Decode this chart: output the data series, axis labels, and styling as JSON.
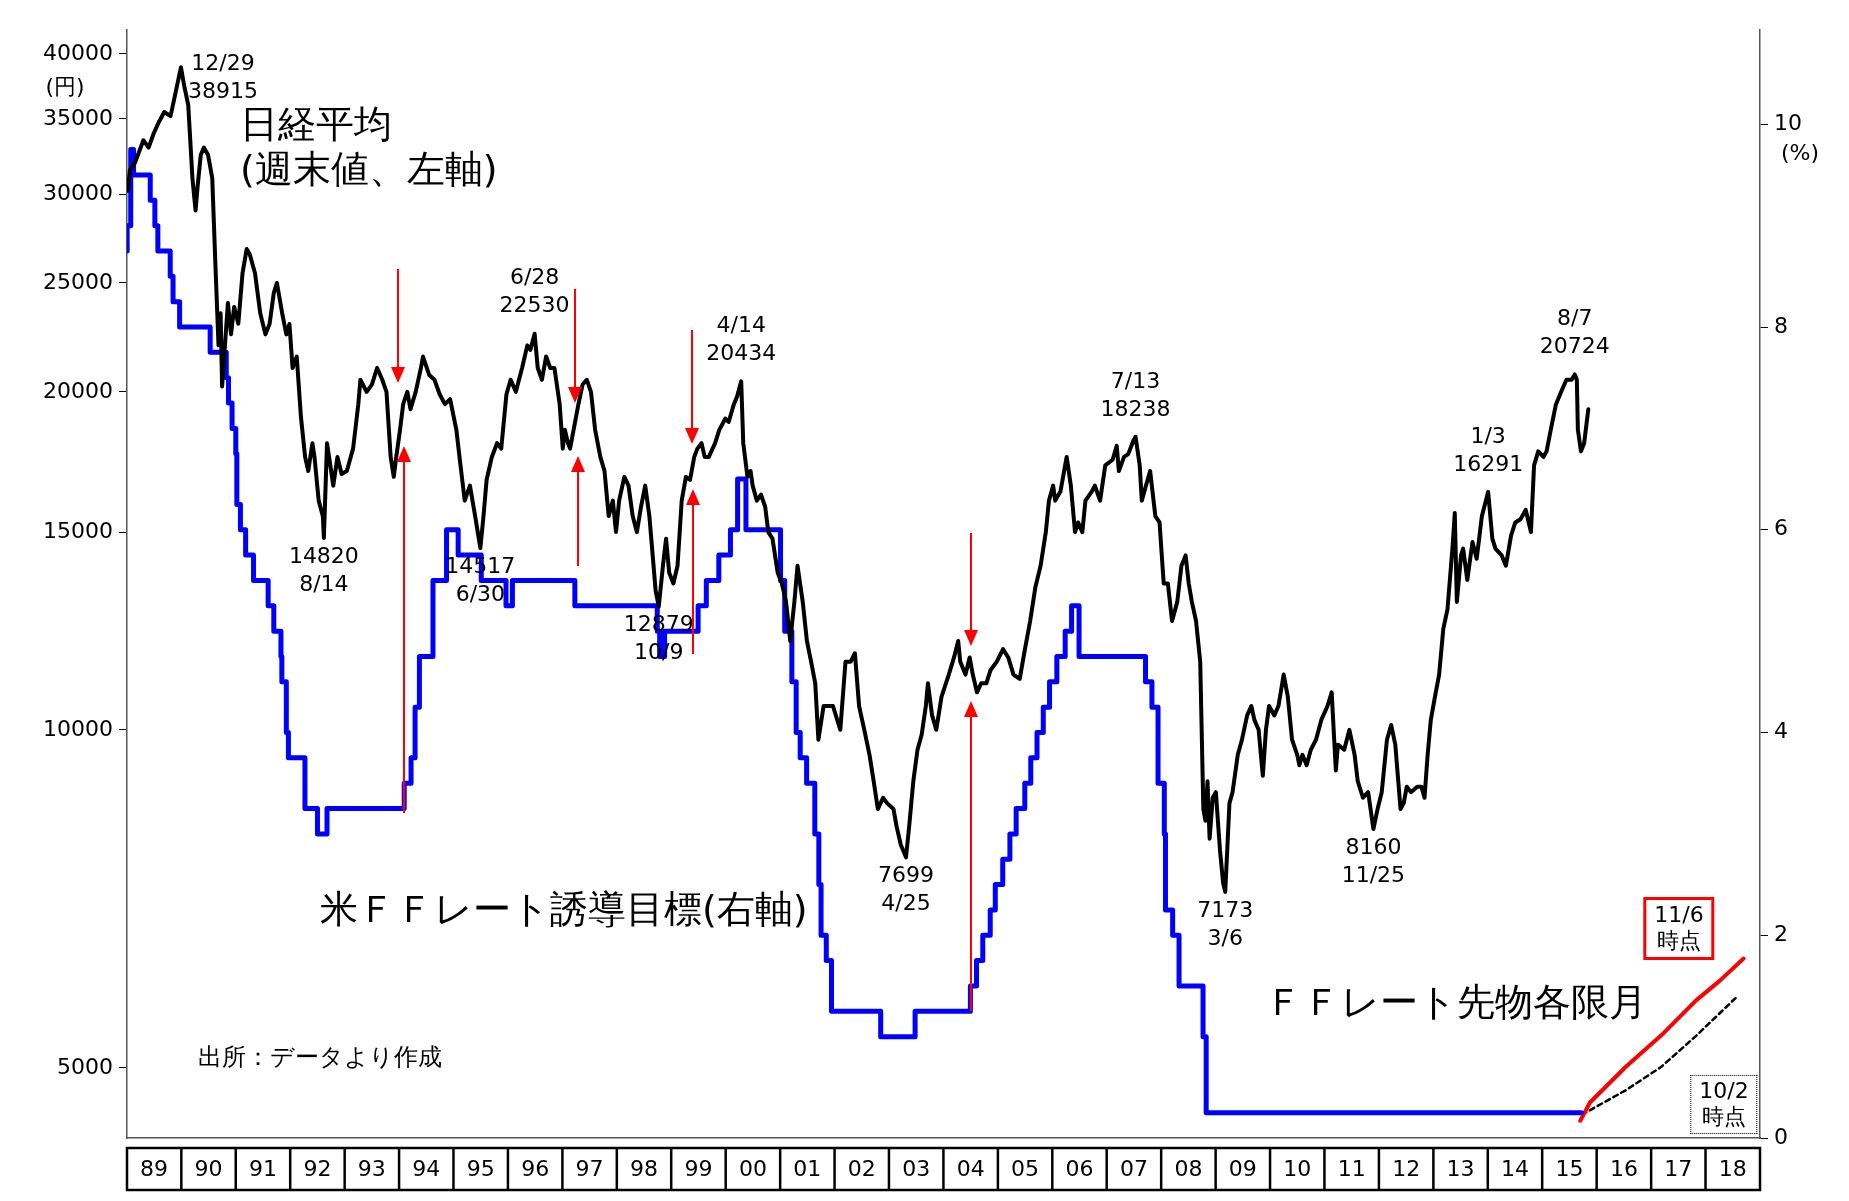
{
  "chart_data": {
    "type": "line",
    "ylabel": "(円)",
    "y2label": "(%)",
    "log": "y",
    "marker": "none",
    "xlim": [
      "1989-01-01",
      "2019-01-01"
    ],
    "xticks": [
      {
        "value": "1989-07-02",
        "label": "89"
      },
      {
        "value": "1990-07-02",
        "label": "90"
      },
      {
        "value": "1991-07-02",
        "label": "91"
      },
      {
        "value": "1992-07-02",
        "label": "92"
      },
      {
        "value": "1993-07-02",
        "label": "93"
      },
      {
        "value": "1994-07-02",
        "label": "94"
      },
      {
        "value": "1995-07-02",
        "label": "95"
      },
      {
        "value": "1996-07-02",
        "label": "96"
      },
      {
        "value": "1997-07-02",
        "label": "97"
      },
      {
        "value": "1998-07-02",
        "label": "98"
      },
      {
        "value": "1999-07-02",
        "label": "99"
      },
      {
        "value": "2000-07-02",
        "label": "00"
      },
      {
        "value": "2001-07-02",
        "label": "01"
      },
      {
        "value": "2002-07-02",
        "label": "02"
      },
      {
        "value": "2003-07-02",
        "label": "03"
      },
      {
        "value": "2004-07-02",
        "label": "04"
      },
      {
        "value": "2005-07-02",
        "label": "05"
      },
      {
        "value": "2006-07-02",
        "label": "06"
      },
      {
        "value": "2007-07-02",
        "label": "07"
      },
      {
        "value": "2008-07-02",
        "label": "08"
      },
      {
        "value": "2009-07-02",
        "label": "09"
      },
      {
        "value": "2010-07-02",
        "label": "10"
      },
      {
        "value": "2011-07-02",
        "label": "11"
      },
      {
        "value": "2012-07-02",
        "label": "12"
      },
      {
        "value": "2013-07-02",
        "label": "13"
      },
      {
        "value": "2014-07-02",
        "label": "14"
      },
      {
        "value": "2015-07-02",
        "label": "15"
      },
      {
        "value": "2016-07-02",
        "label": "16"
      },
      {
        "value": "2017-07-02",
        "label": "17"
      },
      {
        "value": "2018-07-02",
        "label": "18"
      }
    ],
    "ylim": [
      4330,
      42000
    ],
    "yticks": [
      5000,
      10000,
      15000,
      20000,
      25000,
      30000,
      35000,
      40000
    ],
    "y2lim": [
      0,
      10.93
    ],
    "y2ticks": [
      0,
      2,
      4,
      6,
      8,
      10
    ],
    "series": [
      {
        "name": "日経平均\n(週末値、左軸)",
        "type": "line",
        "color": "#000000",
        "x": [
          "1989-01-06",
          "1989-01-20",
          "1989-02-24",
          "1989-04-21",
          "1989-05-26",
          "1989-06-30",
          "1989-08-04",
          "1989-09-08",
          "1989-10-20",
          "1989-11-24",
          "1989-12-29",
          "1990-01-19",
          "1990-02-16",
          "1990-03-16",
          "1990-04-06",
          "1990-04-20",
          "1990-05-11",
          "1990-06-01",
          "1990-06-29",
          "1990-07-27",
          "1990-08-17",
          "1990-09-07",
          "1990-09-21",
          "1990-10-01",
          "1990-11-09",
          "1990-11-30",
          "1990-12-21",
          "1991-01-18",
          "1991-02-15",
          "1991-03-15",
          "1991-04-05",
          "1991-05-10",
          "1991-06-14",
          "1991-07-19",
          "1991-08-16",
          "1991-09-13",
          "1991-10-04",
          "1991-11-08",
          "1991-12-06",
          "1991-12-27",
          "1992-01-17",
          "1992-02-14",
          "1992-03-13",
          "1992-04-10",
          "1992-05-01",
          "1992-05-29",
          "1992-06-12",
          "1992-07-10",
          "1992-08-07",
          "1992-08-14",
          "1992-09-04",
          "1992-09-18",
          "1992-10-16",
          "1992-11-13",
          "1992-12-11",
          "1993-01-15",
          "1993-02-26",
          "1993-04-02",
          "1993-04-16",
          "1993-05-28",
          "1993-07-02",
          "1993-08-06",
          "1993-09-10",
          "1993-10-08",
          "1993-11-05",
          "1993-11-26",
          "1993-12-10",
          "1994-01-07",
          "1994-01-28",
          "1994-02-25",
          "1994-03-18",
          "1994-04-22",
          "1994-05-27",
          "1994-06-10",
          "1994-07-22",
          "1994-08-26",
          "1994-09-30",
          "1994-11-04",
          "1994-12-09",
          "1995-01-20",
          "1995-02-10",
          "1995-03-17",
          "1995-04-21",
          "1995-05-26",
          "1995-06-30",
          "1995-07-21",
          "1995-08-11",
          "1995-09-15",
          "1995-10-20",
          "1995-11-17",
          "1995-12-22",
          "1996-01-19",
          "1996-02-23",
          "1996-04-05",
          "1996-05-10",
          "1996-05-31",
          "1996-06-28",
          "1996-07-19",
          "1996-08-16",
          "1996-09-13",
          "1996-10-11",
          "1996-11-08",
          "1996-12-13",
          "1997-01-03",
          "1997-01-17",
          "1997-02-07",
          "1997-02-21",
          "1997-04-18",
          "1997-05-16",
          "1997-06-13",
          "1997-07-11",
          "1997-08-08",
          "1997-09-12",
          "1997-10-10",
          "1997-11-07",
          "1997-12-05",
          "1997-12-26",
          "1998-01-16",
          "1998-02-20",
          "1998-03-20",
          "1998-04-17",
          "1998-05-15",
          "1998-06-12",
          "1998-07-10",
          "1998-08-07",
          "1998-09-04",
          "1998-09-18",
          "1998-10-09",
          "1998-11-06",
          "1998-11-27",
          "1998-12-18",
          "1999-01-15",
          "1999-02-12",
          "1999-03-12",
          "1999-04-09",
          "1999-05-07",
          "1999-06-04",
          "1999-06-25",
          "1999-07-23",
          "1999-08-13",
          "1999-09-10",
          "1999-10-22",
          "1999-11-19",
          "1999-12-30",
          "2000-01-21",
          "2000-02-25",
          "2000-03-17",
          "2000-04-14",
          "2000-04-28",
          "2000-05-26",
          "2000-06-16",
          "2000-06-30",
          "2000-07-28",
          "2000-08-25",
          "2000-09-22",
          "2000-10-13",
          "2000-11-10",
          "2000-12-15",
          "2001-01-12",
          "2001-02-09",
          "2001-03-09",
          "2001-04-06",
          "2001-04-27",
          "2001-06-01",
          "2001-06-29",
          "2001-07-27",
          "2001-08-24",
          "2001-09-14",
          "2001-10-19",
          "2001-11-16",
          "2001-12-21",
          "2002-02-08",
          "2002-03-15",
          "2002-04-19",
          "2002-05-17",
          "2002-06-14",
          "2002-07-19",
          "2002-08-23",
          "2002-09-20",
          "2002-10-18",
          "2002-11-22",
          "2002-12-20",
          "2003-01-31",
          "2003-02-21",
          "2003-03-21",
          "2003-04-25",
          "2003-05-16",
          "2003-06-13",
          "2003-07-11",
          "2003-08-08",
          "2003-09-05",
          "2003-09-19",
          "2003-10-17",
          "2003-11-14",
          "2003-12-19",
          "2004-02-06",
          "2004-03-12",
          "2004-04-09",
          "2004-04-23",
          "2004-05-28",
          "2004-06-25",
          "2004-07-16",
          "2004-08-13",
          "2004-09-10",
          "2004-10-15",
          "2004-11-12",
          "2004-12-24",
          "2005-02-04",
          "2005-03-11",
          "2005-04-15",
          "2005-05-27",
          "2005-07-01",
          "2005-08-05",
          "2005-09-09",
          "2005-10-14",
          "2005-11-18",
          "2005-12-09",
          "2006-01-06",
          "2006-01-20",
          "2006-02-24",
          "2006-04-07",
          "2006-05-05",
          "2006-06-02",
          "2006-06-23",
          "2006-07-21",
          "2006-08-11",
          "2006-09-22",
          "2006-10-13",
          "2006-11-17",
          "2006-12-22",
          "2007-02-09",
          "2007-03-09",
          "2007-03-23",
          "2007-04-27",
          "2007-05-25",
          "2007-06-29",
          "2007-07-13",
          "2007-08-10",
          "2007-08-24",
          "2007-09-21",
          "2007-10-19",
          "2007-11-23",
          "2007-12-21",
          "2008-01-18",
          "2008-02-15",
          "2008-03-14",
          "2008-04-18",
          "2008-05-16",
          "2008-06-13",
          "2008-07-04",
          "2008-07-25",
          "2008-08-22",
          "2008-09-19",
          "2008-10-10",
          "2008-10-24",
          "2008-11-07",
          "2008-11-21",
          "2008-12-12",
          "2009-01-02",
          "2009-01-30",
          "2009-02-20",
          "2009-03-06",
          "2009-04-03",
          "2009-04-24",
          "2009-05-29",
          "2009-06-26",
          "2009-07-31",
          "2009-08-28",
          "2009-09-18",
          "2009-10-16",
          "2009-11-13",
          "2009-12-04",
          "2009-12-25",
          "2010-01-29",
          "2010-02-26",
          "2010-04-02",
          "2010-04-30",
          "2010-05-28",
          "2010-07-02",
          "2010-07-16",
          "2010-08-06",
          "2010-09-03",
          "2010-10-01",
          "2010-11-05",
          "2010-12-10",
          "2011-01-21",
          "2011-02-18",
          "2011-03-18",
          "2011-04-01",
          "2011-05-13",
          "2011-06-17",
          "2011-07-22",
          "2011-08-12",
          "2011-09-16",
          "2011-10-21",
          "2011-11-25",
          "2011-12-23",
          "2012-01-20",
          "2012-02-24",
          "2012-03-23",
          "2012-04-20",
          "2012-05-25",
          "2012-06-15",
          "2012-07-06",
          "2012-08-03",
          "2012-09-14",
          "2012-10-12",
          "2012-11-02",
          "2012-11-23",
          "2012-12-14",
          "2013-01-11",
          "2013-02-08",
          "2013-03-08",
          "2013-04-05",
          "2013-05-10",
          "2013-05-24",
          "2013-06-07",
          "2013-07-05",
          "2013-07-19",
          "2013-08-16",
          "2013-09-20",
          "2013-10-18",
          "2013-11-22",
          "2014-01-03",
          "2014-01-31",
          "2014-02-21",
          "2014-04-04",
          "2014-05-02",
          "2014-06-06",
          "2014-07-04",
          "2014-08-08",
          "2014-09-12",
          "2014-10-17",
          "2014-11-07",
          "2014-12-05",
          "2015-01-09",
          "2015-01-30",
          "2015-02-27",
          "2015-04-03",
          "2015-05-08",
          "2015-06-12",
          "2015-07-17",
          "2015-08-07",
          "2015-08-21",
          "2015-08-28",
          "2015-09-18",
          "2015-10-09",
          "2015-11-06"
        ],
        "values": [
          30200,
          31500,
          32000,
          33500,
          33000,
          34000,
          34800,
          35500,
          35200,
          37000,
          38915,
          37500,
          36000,
          31000,
          29000,
          30500,
          32500,
          33000,
          32500,
          31000,
          26000,
          22000,
          23500,
          20221,
          24000,
          22500,
          23800,
          23000,
          25500,
          26800,
          26500,
          25500,
          23500,
          22500,
          23000,
          24500,
          25000,
          23500,
          22500,
          22983,
          21000,
          21500,
          19000,
          17500,
          17000,
          18000,
          17500,
          16000,
          15500,
          14820,
          18000,
          17500,
          16500,
          17500,
          16900,
          17000,
          17800,
          19500,
          20500,
          20000,
          20300,
          21000,
          20500,
          20000,
          17500,
          16800,
          17400,
          18500,
          19500,
          20000,
          19300,
          20000,
          21000,
          21500,
          20700,
          20500,
          19900,
          19500,
          19700,
          18500,
          17500,
          16000,
          16500,
          15500,
          14517,
          15500,
          16700,
          17500,
          18000,
          17800,
          19900,
          20500,
          20000,
          21000,
          22000,
          21800,
          22530,
          21000,
          20500,
          21500,
          21000,
          21000,
          19500,
          17800,
          18500,
          18000,
          17800,
          19500,
          20300,
          20500,
          20000,
          18500,
          17500,
          17000,
          15500,
          16000,
          15000,
          16000,
          16800,
          16500,
          15500,
          15000,
          15800,
          16500,
          15500,
          14000,
          13300,
          12879,
          14000,
          14800,
          13800,
          13500,
          14000,
          16000,
          16800,
          16700,
          17500,
          17800,
          18000,
          17500,
          17500,
          18000,
          18500,
          18934,
          18800,
          19500,
          19800,
          20434,
          18000,
          16800,
          17000,
          16500,
          16000,
          16200,
          15800,
          15000,
          14800,
          13800,
          13500,
          13000,
          12000,
          13000,
          14000,
          13000,
          12000,
          11500,
          11000,
          9800,
          10500,
          10500,
          10500,
          10000,
          11500,
          11500,
          11700,
          10500,
          10000,
          9500,
          9000,
          8500,
          8700,
          8600,
          8500,
          8200,
          7900,
          7699,
          8200,
          9000,
          9600,
          9900,
          10500,
          11000,
          10300,
          10000,
          10700,
          11200,
          11600,
          12000,
          11500,
          11200,
          11600,
          11200,
          10800,
          11000,
          11000,
          11300,
          11500,
          11800,
          11600,
          11200,
          11100,
          11800,
          12500,
          13400,
          14000,
          15000,
          16000,
          16500,
          16000,
          16300,
          17500,
          16500,
          15000,
          15300,
          15000,
          16000,
          16300,
          16500,
          16000,
          17200,
          17400,
          17900,
          17000,
          17500,
          17600,
          18100,
          18238,
          17200,
          16000,
          16500,
          17000,
          15500,
          15300,
          13500,
          13500,
          12500,
          13000,
          14000,
          14300,
          13500,
          13000,
          12500,
          11500,
          8500,
          8300,
          9000,
          8000,
          8700,
          8800,
          7800,
          7300,
          7173,
          8600,
          8800,
          9500,
          9800,
          10300,
          10500,
          10200,
          10000,
          9100,
          10000,
          10500,
          10300,
          10500,
          11200,
          10700,
          9800,
          9500,
          9300,
          9500,
          9300,
          9600,
          9800,
          10200,
          10500,
          10800,
          9200,
          9700,
          9600,
          10000,
          9500,
          9000,
          8700,
          8800,
          8160,
          8500,
          8800,
          9800,
          10100,
          9700,
          8500,
          8600,
          8900,
          8800,
          8900,
          8900,
          8700,
          9500,
          10200,
          10700,
          11200,
          12300,
          12800,
          14600,
          15600,
          13000,
          14300,
          14500,
          13600,
          14700,
          14200,
          15500,
          16291,
          14800,
          14500,
          14300,
          14000,
          14900,
          15300,
          15400,
          15700,
          15000,
          17200,
          17700,
          17500,
          17700,
          18500,
          19500,
          20000,
          20500,
          20500,
          20724,
          20500,
          18500,
          17700,
          18000,
          19300
        ]
      },
      {
        "name": "米ＦＦレート誘導目標(右軸)",
        "type": "step",
        "axis": "y2",
        "color": "#0000ff",
        "x": [
          "1989-01-02",
          "1989-01-26",
          "1989-02-14",
          "1989-06-06",
          "1989-07-07",
          "1989-07-27",
          "1989-10-18",
          "1989-11-06",
          "1989-12-20",
          "1990-07-13",
          "1990-10-29",
          "1990-11-13",
          "1990-12-07",
          "1991-01-01",
          "1991-01-08",
          "1991-02-01",
          "1991-03-08",
          "1991-04-30",
          "1991-08-06",
          "1991-09-13",
          "1991-10-31",
          "1991-11-06",
          "1991-12-06",
          "1991-12-20",
          "1992-04-09",
          "1992-07-02",
          "1992-09-04",
          "1994-02-04",
          "1994-03-22",
          "1994-04-18",
          "1994-05-17",
          "1994-08-16",
          "1994-11-15",
          "1995-02-01",
          "1995-07-06",
          "1995-12-19",
          "1996-01-31",
          "1997-03-25",
          "1998-09-29",
          "1998-10-15",
          "1998-11-17",
          "1999-06-30",
          "1999-08-24",
          "1999-11-16",
          "2000-02-02",
          "2000-03-21",
          "2000-05-16",
          "2001-01-03",
          "2001-01-31",
          "2001-03-20",
          "2001-04-18",
          "2001-05-15",
          "2001-06-27",
          "2001-08-21",
          "2001-09-17",
          "2001-10-02",
          "2001-11-06",
          "2001-12-11",
          "2002-11-06",
          "2003-06-25",
          "2004-06-30",
          "2004-08-10",
          "2004-09-21",
          "2004-11-10",
          "2004-12-14",
          "2005-02-02",
          "2005-03-22",
          "2005-05-03",
          "2005-06-30",
          "2005-08-09",
          "2005-09-20",
          "2005-11-01",
          "2005-12-13",
          "2006-01-31",
          "2006-03-28",
          "2006-05-10",
          "2006-06-29",
          "2007-09-18",
          "2007-10-31",
          "2007-12-11",
          "2008-01-22",
          "2008-01-30",
          "2008-03-18",
          "2008-04-30",
          "2008-10-08",
          "2008-10-29",
          "2008-12-16",
          "2015-09-20"
        ],
        "values": [
          8.75,
          9.0,
          9.75,
          9.5,
          9.25,
          9.0,
          8.75,
          8.5,
          8.25,
          8.0,
          7.75,
          7.5,
          7.25,
          7.0,
          6.75,
          6.25,
          6.0,
          5.75,
          5.5,
          5.25,
          5.0,
          4.75,
          4.5,
          4.0,
          3.75,
          3.25,
          3.0,
          3.25,
          3.5,
          3.75,
          4.25,
          4.75,
          5.5,
          6.0,
          5.75,
          5.5,
          5.25,
          5.5,
          5.25,
          5.0,
          4.75,
          5.0,
          5.25,
          5.5,
          5.75,
          6.0,
          6.5,
          6.0,
          5.5,
          5.0,
          4.5,
          4.0,
          3.75,
          3.5,
          3.0,
          2.5,
          2.0,
          1.75,
          1.25,
          1.0,
          1.25,
          1.5,
          1.75,
          2.0,
          2.25,
          2.5,
          2.75,
          3.0,
          3.25,
          3.5,
          3.75,
          4.0,
          4.25,
          4.5,
          4.75,
          5.0,
          5.25,
          4.75,
          4.5,
          4.25,
          3.5,
          3.0,
          2.25,
          2.0,
          1.5,
          1.0,
          0.25,
          0.25
        ]
      },
      {
        "name": "11/6\n時点",
        "type": "line",
        "axis": "y2",
        "color": "#ff0000",
        "x": [
          "2015-09-13",
          "2015-11-17",
          "2016-07-13",
          "2017-03-08",
          "2017-10-31",
          "2018-04-05",
          "2018-09-13"
        ],
        "values": [
          0.17,
          0.35,
          0.7,
          1.01,
          1.36,
          1.55,
          1.77
        ]
      },
      {
        "name": "10/2\n時点",
        "type": "line",
        "axis": "y2",
        "color": "#000000",
        "line_style": "dotted",
        "x": [
          "2015-09-24",
          "2016-07-13",
          "2017-03-08",
          "2017-10-31",
          "2018-08-04"
        ],
        "values": [
          0.23,
          0.47,
          0.7,
          1.01,
          1.4
        ]
      }
    ],
    "annotations": [
      {
        "text": "12/29\n38915",
        "x": "1989-12-29",
        "y": 38915
      },
      {
        "text": "14820\n8/14",
        "x": "1992-08-14",
        "y": 14820
      },
      {
        "text": "14517\n6/30",
        "x": "1995-06-30",
        "y": 14517
      },
      {
        "text": "6/28\n22530",
        "x": "1996-06-28",
        "y": 22530
      },
      {
        "text": "12879\n10/9",
        "x": "1998-10-09",
        "y": 12879
      },
      {
        "text": "4/14\n20434",
        "x": "2000-04-14",
        "y": 20434
      },
      {
        "text": "7699\n4/25",
        "x": "2003-04-25",
        "y": 7699
      },
      {
        "text": "7/13\n18238",
        "x": "2007-07-13",
        "y": 18238
      },
      {
        "text": "7173\n3/6",
        "x": "2009-03-06",
        "y": 7173
      },
      {
        "text": "8160\n11/25",
        "x": "2011-11-25",
        "y": 8160
      },
      {
        "text": "1/3\n16291",
        "x": "2014-01-03",
        "y": 16291
      },
      {
        "text": "8/7\n20724",
        "x": "2015-08-07",
        "y": 20724
      },
      "ＦＦレート先物各限月",
      "出所：データより作成"
    ]
  }
}
